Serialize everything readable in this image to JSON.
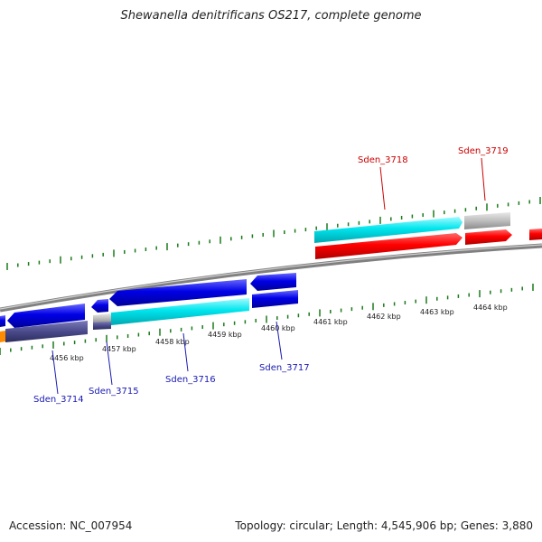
{
  "title": "Shewanella denitrificans OS217, complete genome",
  "footer": {
    "accession": "Accession: NC_007954",
    "summary": "Topology: circular; Length: 4,545,906 bp; Genes: 3,880"
  },
  "colors": {
    "forward_cds": "#ff0000",
    "reverse_cds": "#0000e6",
    "label_forward": "#cc0000",
    "label_reverse": "#1a1ab3",
    "highlight": "#00e5ee",
    "grey": "#bdbdbd",
    "purple": "#4a4a8c",
    "tick": "#1a7a1a"
  },
  "scale_labels": [
    "4456 kbp",
    "4457 kbp",
    "4458 kbp",
    "4459 kbp",
    "4460 kbp",
    "4461 kbp",
    "4462 kbp",
    "4463 kbp",
    "4464 kbp"
  ],
  "gene_labels": [
    {
      "text": "Sden_3714",
      "strand": "reverse"
    },
    {
      "text": "Sden_3715",
      "strand": "reverse"
    },
    {
      "text": "Sden_3716",
      "strand": "reverse"
    },
    {
      "text": "Sden_3717",
      "strand": "reverse"
    },
    {
      "text": "Sden_3718",
      "strand": "forward"
    },
    {
      "text": "Sden_3719",
      "strand": "forward"
    }
  ]
}
